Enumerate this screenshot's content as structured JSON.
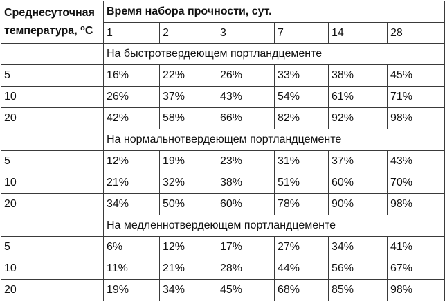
{
  "table": {
    "temp_header": "Среднесуточная температура, ",
    "temp_unit_sup": "о",
    "temp_unit": "С",
    "time_header": "Время набора прочности, сут.",
    "days": [
      "1",
      "2",
      "3",
      "7",
      "14",
      "28"
    ],
    "sections": [
      {
        "title": "На быстротвердеющем портландцементе",
        "rows": [
          {
            "temp": "5",
            "values": [
              "16%",
              "22%",
              "26%",
              "33%",
              "38%",
              "45%"
            ]
          },
          {
            "temp": "10",
            "values": [
              "26%",
              "37%",
              "43%",
              "54%",
              "61%",
              "71%"
            ]
          },
          {
            "temp": "20",
            "values": [
              "42%",
              "58%",
              "66%",
              "82%",
              "92%",
              "98%"
            ]
          }
        ]
      },
      {
        "title": "На нормальнотвердеющем портландцементе",
        "rows": [
          {
            "temp": "5",
            "values": [
              "12%",
              "19%",
              "23%",
              "31%",
              "37%",
              "43%"
            ]
          },
          {
            "temp": "10",
            "values": [
              "21%",
              "32%",
              "38%",
              "51%",
              "60%",
              "70%"
            ]
          },
          {
            "temp": "20",
            "values": [
              "34%",
              "50%",
              "60%",
              "78%",
              "90%",
              "98%"
            ]
          }
        ]
      },
      {
        "title": "На медленнотвердеющем портландцементе",
        "rows": [
          {
            "temp": "5",
            "values": [
              "6%",
              "12%",
              "17%",
              "27%",
              "34%",
              "41%"
            ]
          },
          {
            "temp": "10",
            "values": [
              "11%",
              "21%",
              "28%",
              "44%",
              "56%",
              "67%"
            ]
          },
          {
            "temp": "20",
            "values": [
              "19%",
              "34%",
              "45%",
              "68%",
              "85%",
              "98%"
            ]
          }
        ]
      }
    ]
  }
}
